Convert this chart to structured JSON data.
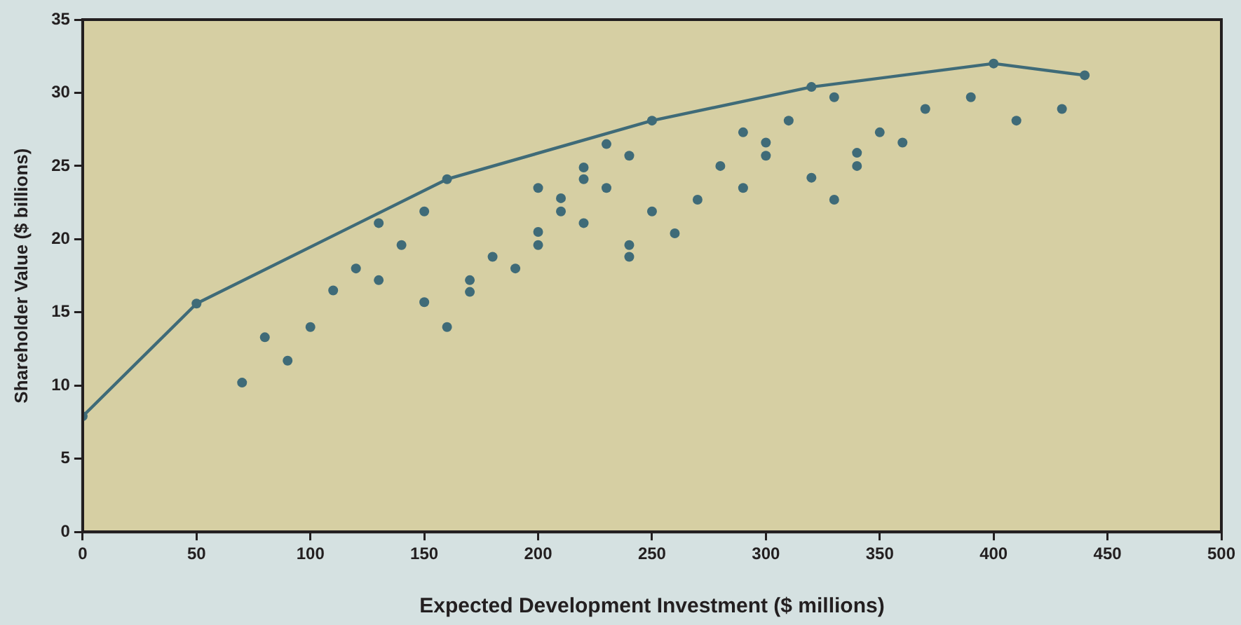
{
  "chart_data": {
    "type": "scatter",
    "xlabel": "Expected Development Investment ($ millions)",
    "ylabel": "Shareholder Value ($ billions)",
    "xlim": [
      0,
      500
    ],
    "xticks": [
      0,
      50,
      100,
      150,
      200,
      250,
      300,
      350,
      400,
      450,
      500
    ],
    "ylim": [
      0,
      35
    ],
    "yticks": [
      0,
      5,
      10,
      15,
      20,
      25,
      30,
      35
    ],
    "grid": false,
    "marker": "circle",
    "series": [
      {
        "type": "scatter",
        "color": "#3f6b78",
        "x": [
          70,
          80,
          90,
          100,
          110,
          120,
          130,
          130,
          140,
          150,
          150,
          160,
          170,
          170,
          180,
          190,
          200,
          200,
          200,
          210,
          210,
          220,
          220,
          220,
          230,
          230,
          240,
          240,
          240,
          250,
          260,
          270,
          280,
          290,
          290,
          300,
          300,
          310,
          320,
          330,
          330,
          340,
          340,
          350,
          360,
          370,
          390,
          410,
          430
        ],
        "values": [
          10.2,
          13.3,
          11.7,
          14,
          16.5,
          18,
          21.1,
          17.2,
          19.6,
          21.9,
          15.7,
          14,
          17.2,
          16.4,
          18.8,
          18,
          23.5,
          20.5,
          19.6,
          22.8,
          21.9,
          24.9,
          24.1,
          21.1,
          26.5,
          23.5,
          25.7,
          19.6,
          18.8,
          21.9,
          20.4,
          22.7,
          25,
          27.3,
          23.5,
          26.6,
          25.7,
          28.1,
          24.2,
          29.7,
          22.7,
          25.9,
          25,
          27.3,
          26.6,
          28.9,
          29.7,
          28.1,
          28.9
        ]
      },
      {
        "type": "line",
        "color": "#3f6b78",
        "x": [
          0,
          50,
          160,
          250,
          320,
          400,
          440
        ],
        "values": [
          7.9,
          15.6,
          24.1,
          28.1,
          30.4,
          32,
          31.2
        ]
      }
    ]
  }
}
